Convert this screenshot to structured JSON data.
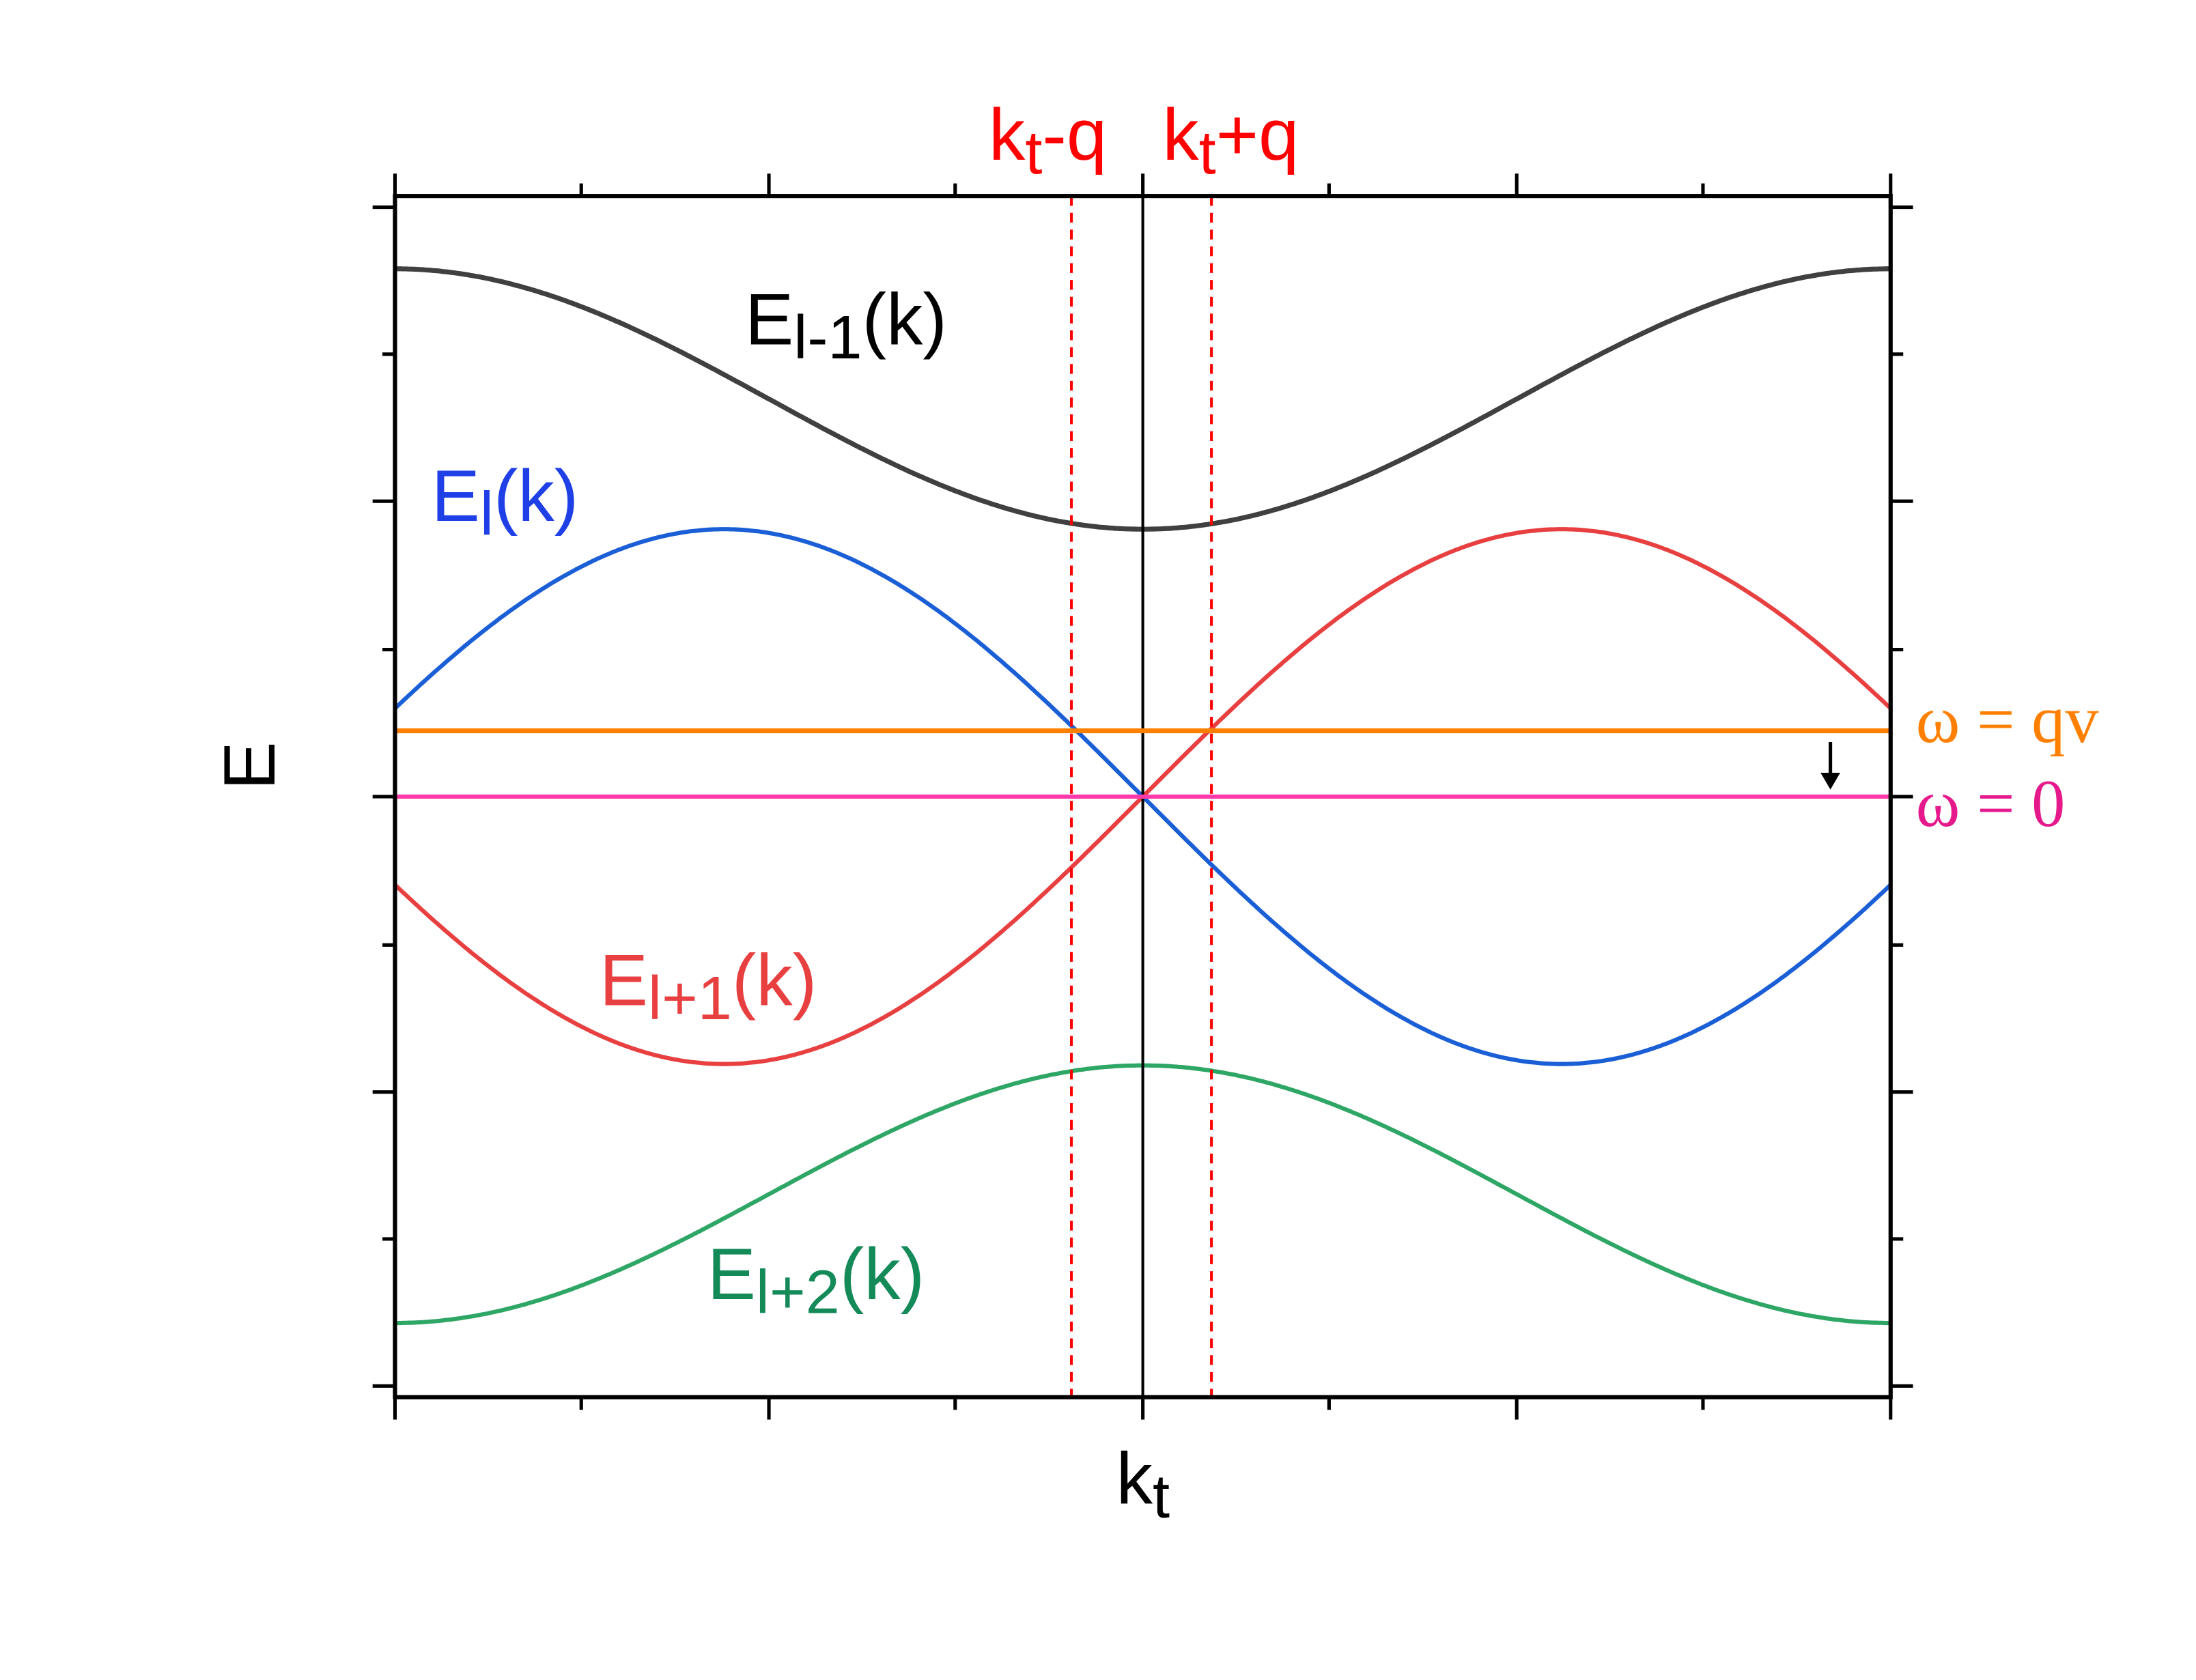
{
  "top_labels": [
    {
      "base": "k",
      "sub": "t",
      "tail": "-q"
    },
    {
      "base": "k",
      "sub": "t",
      "tail": "+q"
    }
  ],
  "bands": [
    {
      "base": "E",
      "sub": "l-1",
      "tail": "(k)"
    },
    {
      "base": "E",
      "sub": "l",
      "tail": "(k)"
    },
    {
      "base": "E",
      "sub": "l+1",
      "tail": "(k)"
    },
    {
      "base": "E",
      "sub": "l+2",
      "tail": "(k)"
    }
  ],
  "y_axis_label": "E",
  "x_axis_label": {
    "base": "k",
    "sub": "t"
  },
  "lines": [
    "ω = qv",
    "ω = 0"
  ]
}
